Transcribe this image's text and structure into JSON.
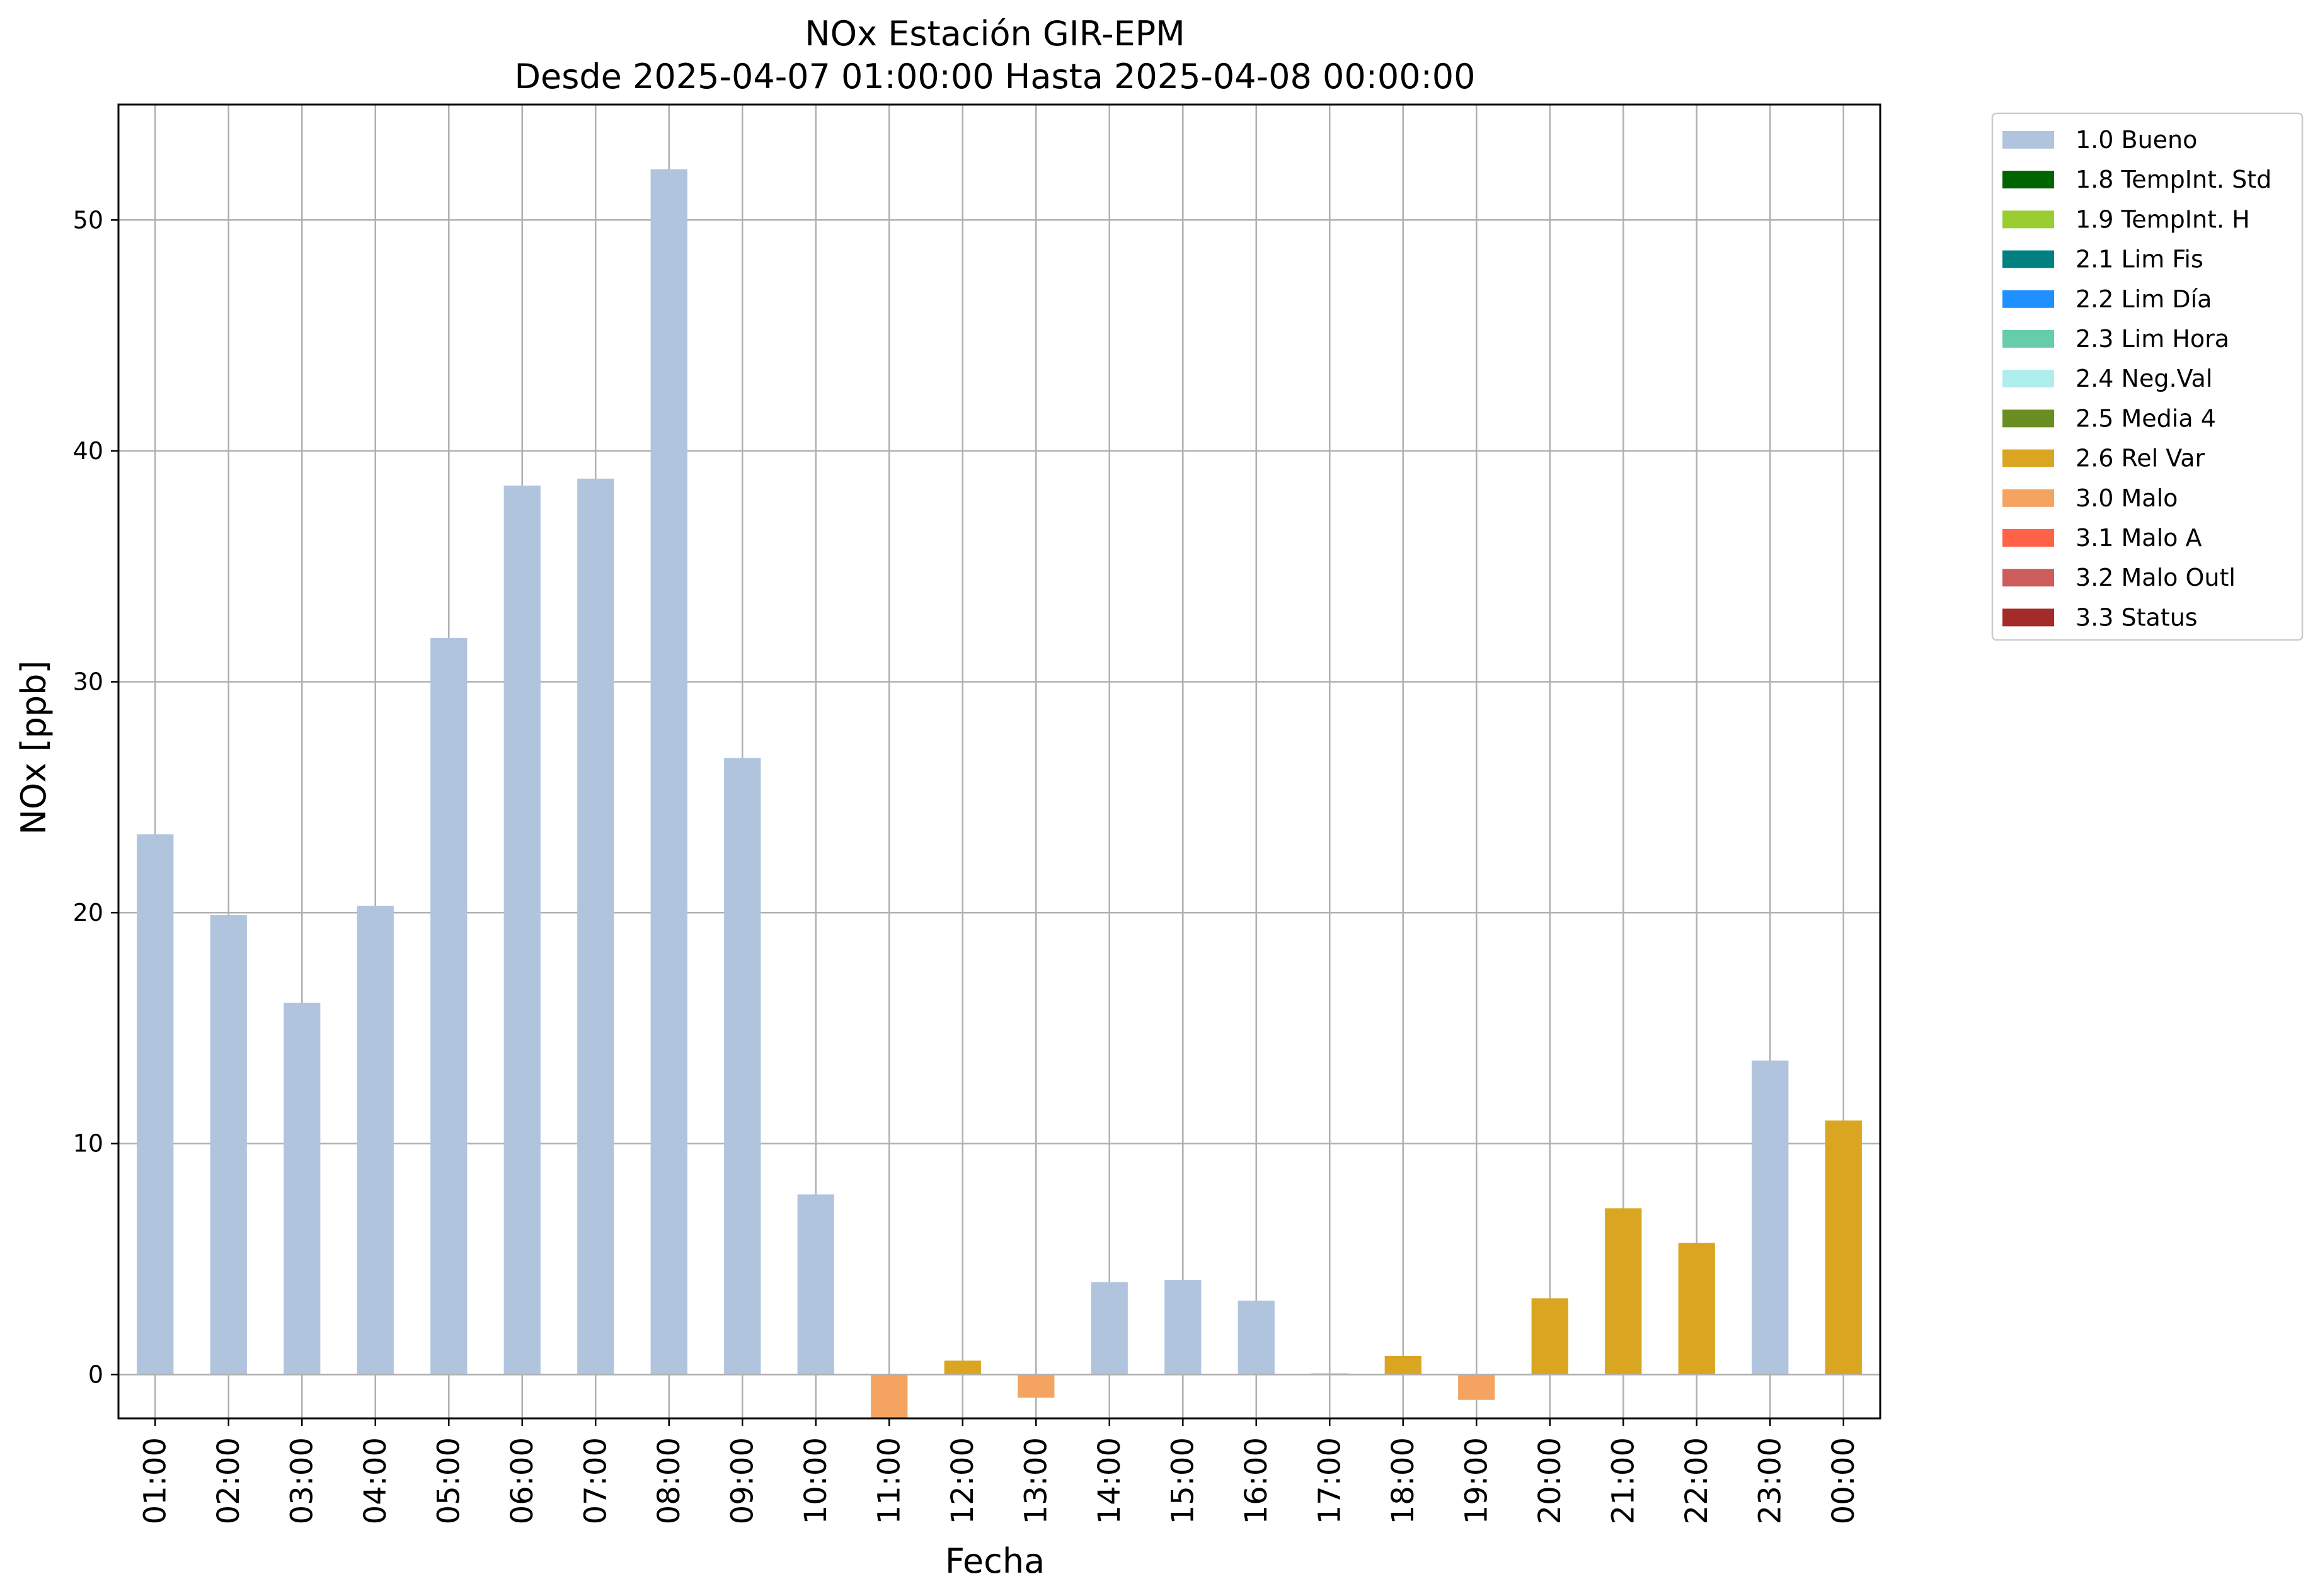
{
  "chart_data": {
    "type": "bar",
    "title": "NOx Estación GIR-EPM",
    "subtitle": "Desde 2025-04-07 01:00:00 Hasta 2025-04-08 00:00:00",
    "xlabel": "Fecha",
    "ylabel": "NOx [ppb]",
    "ylim": [
      -1.9,
      55
    ],
    "yticks": [
      0,
      10,
      20,
      30,
      40,
      50
    ],
    "grid": true,
    "legend_position": "outside-top-right",
    "categories": [
      "01:00",
      "02:00",
      "03:00",
      "04:00",
      "05:00",
      "06:00",
      "07:00",
      "08:00",
      "09:00",
      "10:00",
      "11:00",
      "12:00",
      "13:00",
      "14:00",
      "15:00",
      "16:00",
      "17:00",
      "18:00",
      "19:00",
      "20:00",
      "21:00",
      "22:00",
      "23:00",
      "00:00"
    ],
    "values": [
      23.4,
      19.9,
      16.1,
      20.3,
      31.9,
      38.5,
      38.8,
      52.2,
      26.7,
      7.8,
      -1.9,
      0.6,
      -1.0,
      4.0,
      4.1,
      3.2,
      0.05,
      0.8,
      -1.1,
      3.3,
      7.2,
      5.7,
      13.6,
      11.0
    ],
    "flags": [
      "1.0 Bueno",
      "1.0 Bueno",
      "1.0 Bueno",
      "1.0 Bueno",
      "1.0 Bueno",
      "1.0 Bueno",
      "1.0 Bueno",
      "1.0 Bueno",
      "1.0 Bueno",
      "1.0 Bueno",
      "3.0 Malo",
      "2.6 Rel Var",
      "3.0 Malo",
      "1.0 Bueno",
      "1.0 Bueno",
      "1.0 Bueno",
      "3.0 Malo",
      "2.6 Rel Var",
      "3.0 Malo",
      "2.6 Rel Var",
      "2.6 Rel Var",
      "2.6 Rel Var",
      "1.0 Bueno",
      "2.6 Rel Var"
    ],
    "legend": [
      {
        "label": "1.0 Bueno",
        "color": "#b0c4de"
      },
      {
        "label": "1.8 TempInt. Std",
        "color": "#006400"
      },
      {
        "label": "1.9 TempInt. H",
        "color": "#9acd32"
      },
      {
        "label": "2.1 Lim Fis",
        "color": "#008080"
      },
      {
        "label": "2.2 Lim Día",
        "color": "#1e90ff"
      },
      {
        "label": "2.3 Lim Hora",
        "color": "#66cdaa"
      },
      {
        "label": "2.4 Neg.Val",
        "color": "#afeeee"
      },
      {
        "label": "2.5 Media 4",
        "color": "#6b8e23"
      },
      {
        "label": "2.6 Rel Var",
        "color": "#daa520"
      },
      {
        "label": "3.0 Malo",
        "color": "#f4a460"
      },
      {
        "label": "3.1 Malo A",
        "color": "#ff6347"
      },
      {
        "label": "3.2 Malo Outl",
        "color": "#cd5c5c"
      },
      {
        "label": "3.3 Status",
        "color": "#a52a2a"
      }
    ]
  }
}
